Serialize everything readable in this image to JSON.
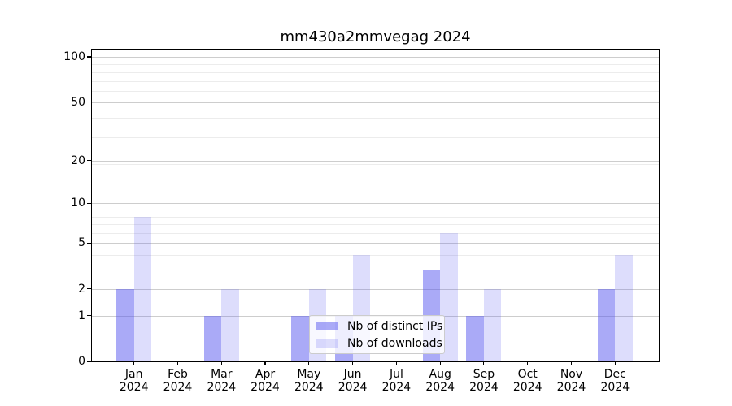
{
  "chart_data": {
    "type": "bar",
    "title": "mm430a2mmvegag 2024",
    "categories": [
      "Jan 2024",
      "Feb 2024",
      "Mar 2024",
      "Apr 2024",
      "May 2024",
      "Jun 2024",
      "Jul 2024",
      "Aug 2024",
      "Sep 2024",
      "Oct 2024",
      "Nov 2024",
      "Dec 2024"
    ],
    "series": [
      {
        "name": "Nb of distinct IPs",
        "values": [
          2,
          0,
          1,
          0,
          1,
          1,
          0,
          3,
          1,
          0,
          0,
          2
        ],
        "color": "rgba(85,85,240,0.5)"
      },
      {
        "name": "Nb of downloads",
        "values": [
          8,
          0,
          2,
          0,
          2,
          4,
          0,
          6,
          2,
          0,
          0,
          4
        ],
        "color": "rgba(85,85,240,0.2)"
      }
    ],
    "yscale": "log1p",
    "yticks": [
      0,
      1,
      2,
      5,
      10,
      20,
      50,
      100
    ],
    "ylim": [
      0,
      112
    ],
    "xlabel": "",
    "ylabel": "",
    "grid": {
      "axis": "y",
      "major": true,
      "minor": true
    },
    "legend_position": "lower center"
  },
  "colors": {
    "background": "#ffffff",
    "text": "#000000",
    "major_gridline": "#cdcdcd",
    "minor_gridline": "#ececec",
    "axis_frame": "#000000",
    "legend_border": "#cccccc",
    "legend_background": "rgba(255,255,255,0.8)"
  }
}
